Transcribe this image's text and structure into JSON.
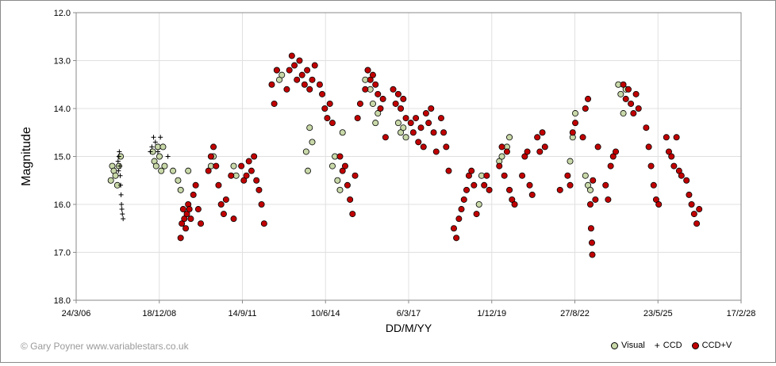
{
  "chart_data": {
    "type": "scatter",
    "title": "",
    "xlabel": "DD/M/YY",
    "ylabel": "Magnitude",
    "y_inverted": true,
    "ylim": [
      12.0,
      18.0
    ],
    "y_ticks": [
      "12.0",
      "13.0",
      "14.0",
      "15.0",
      "16.0",
      "17.0",
      "18.0"
    ],
    "xlim": [
      "2006-03-24",
      "2028-02-17"
    ],
    "x_ticks": [
      "24/3/06",
      "18/12/08",
      "14/9/11",
      "10/6/14",
      "6/3/17",
      "1/12/19",
      "27/8/22",
      "23/5/25",
      "17/2/28"
    ],
    "grid": true,
    "legend_position": "bottom-right",
    "colors": {
      "visual": "#c8d8a8",
      "ccd": "#000000",
      "ccdv": "#c00000",
      "grid": "#e0e0e0"
    },
    "series": [
      {
        "name": "Visual",
        "marker": "circle",
        "points": [
          [
            "2007-05-15",
            15.5
          ],
          [
            "2007-06-01",
            15.2
          ],
          [
            "2007-06-20",
            15.3
          ],
          [
            "2007-07-10",
            15.4
          ],
          [
            "2007-08-01",
            15.6
          ],
          [
            "2007-08-20",
            15.2
          ],
          [
            "2007-09-10",
            15.0
          ],
          [
            "2008-10-01",
            14.9
          ],
          [
            "2008-10-20",
            15.1
          ],
          [
            "2008-11-10",
            15.2
          ],
          [
            "2008-12-01",
            14.8
          ],
          [
            "2008-12-20",
            15.0
          ],
          [
            "2009-01-10",
            15.3
          ],
          [
            "2009-02-01",
            14.8
          ],
          [
            "2009-02-20",
            15.2
          ],
          [
            "2009-06-01",
            15.3
          ],
          [
            "2009-08-01",
            15.5
          ],
          [
            "2009-09-01",
            15.7
          ],
          [
            "2009-12-01",
            15.3
          ],
          [
            "2010-09-01",
            15.2
          ],
          [
            "2010-10-01",
            15.0
          ],
          [
            "2011-06-01",
            15.2
          ],
          [
            "2011-07-01",
            15.4
          ],
          [
            "2012-11-01",
            13.2
          ],
          [
            "2012-12-01",
            13.4
          ],
          [
            "2013-01-01",
            13.3
          ],
          [
            "2013-10-20",
            14.9
          ],
          [
            "2013-11-10",
            15.3
          ],
          [
            "2013-12-01",
            14.4
          ],
          [
            "2014-01-01",
            14.7
          ],
          [
            "2014-09-01",
            15.2
          ],
          [
            "2014-10-01",
            15.0
          ],
          [
            "2014-11-01",
            15.5
          ],
          [
            "2014-12-01",
            15.7
          ],
          [
            "2015-01-01",
            14.5
          ],
          [
            "2015-10-01",
            13.4
          ],
          [
            "2015-11-01",
            13.2
          ],
          [
            "2015-12-01",
            13.6
          ],
          [
            "2016-01-01",
            13.9
          ],
          [
            "2016-02-01",
            14.3
          ],
          [
            "2016-03-01",
            14.1
          ],
          [
            "2016-11-01",
            14.3
          ],
          [
            "2016-12-01",
            14.5
          ],
          [
            "2017-01-01",
            14.4
          ],
          [
            "2017-02-01",
            14.6
          ],
          [
            "2019-07-01",
            16.0
          ],
          [
            "2019-08-01",
            15.4
          ],
          [
            "2020-03-01",
            15.1
          ],
          [
            "2020-04-01",
            15.0
          ],
          [
            "2020-06-01",
            14.8
          ],
          [
            "2020-07-01",
            14.6
          ],
          [
            "2022-07-01",
            15.1
          ],
          [
            "2022-08-01",
            14.6
          ],
          [
            "2022-09-01",
            14.1
          ],
          [
            "2023-01-01",
            15.4
          ],
          [
            "2023-02-01",
            15.6
          ],
          [
            "2023-03-01",
            15.7
          ],
          [
            "2024-02-01",
            13.5
          ],
          [
            "2024-03-01",
            13.7
          ],
          [
            "2024-04-01",
            14.1
          ],
          [
            "2024-05-01",
            13.6
          ]
        ]
      },
      {
        "name": "CCD",
        "marker": "plus",
        "points": [
          [
            "2007-08-10",
            15.1
          ],
          [
            "2007-08-15",
            15.3
          ],
          [
            "2007-08-20",
            15.0
          ],
          [
            "2007-08-25",
            14.9
          ],
          [
            "2007-09-01",
            15.2
          ],
          [
            "2007-09-05",
            15.4
          ],
          [
            "2007-09-10",
            15.6
          ],
          [
            "2007-09-15",
            15.8
          ],
          [
            "2007-09-20",
            16.0
          ],
          [
            "2007-09-25",
            16.1
          ],
          [
            "2007-10-01",
            16.2
          ],
          [
            "2007-10-10",
            16.3
          ],
          [
            "2008-09-01",
            14.9
          ],
          [
            "2008-09-20",
            14.8
          ],
          [
            "2008-10-10",
            14.6
          ],
          [
            "2008-11-01",
            14.7
          ],
          [
            "2008-12-01",
            14.9
          ],
          [
            "2009-01-01",
            14.6
          ],
          [
            "2009-04-01",
            15.0
          ]
        ]
      },
      {
        "name": "CCD+V",
        "marker": "circle",
        "points": [
          [
            "2009-09-01",
            16.7
          ],
          [
            "2009-09-15",
            16.4
          ],
          [
            "2009-10-01",
            16.1
          ],
          [
            "2009-10-15",
            16.3
          ],
          [
            "2009-11-01",
            16.5
          ],
          [
            "2009-11-15",
            16.2
          ],
          [
            "2009-12-01",
            16.0
          ],
          [
            "2009-12-15",
            16.1
          ],
          [
            "2010-01-01",
            16.3
          ],
          [
            "2010-02-01",
            15.8
          ],
          [
            "2010-03-01",
            15.6
          ],
          [
            "2010-04-01",
            16.1
          ],
          [
            "2010-05-01",
            16.4
          ],
          [
            "2010-08-01",
            15.3
          ],
          [
            "2010-09-01",
            15.0
          ],
          [
            "2010-10-01",
            14.8
          ],
          [
            "2010-11-01",
            15.2
          ],
          [
            "2010-12-01",
            15.6
          ],
          [
            "2011-01-01",
            16.0
          ],
          [
            "2011-02-01",
            16.2
          ],
          [
            "2011-03-01",
            15.9
          ],
          [
            "2011-05-01",
            15.4
          ],
          [
            "2011-06-01",
            16.3
          ],
          [
            "2011-09-01",
            15.2
          ],
          [
            "2011-10-01",
            15.5
          ],
          [
            "2011-11-01",
            15.4
          ],
          [
            "2011-12-01",
            15.1
          ],
          [
            "2012-01-01",
            15.3
          ],
          [
            "2012-02-01",
            15.0
          ],
          [
            "2012-03-01",
            15.5
          ],
          [
            "2012-04-01",
            15.7
          ],
          [
            "2012-05-01",
            16.0
          ],
          [
            "2012-06-01",
            16.4
          ],
          [
            "2012-09-01",
            13.5
          ],
          [
            "2012-10-01",
            13.9
          ],
          [
            "2012-11-01",
            13.2
          ],
          [
            "2013-03-01",
            13.6
          ],
          [
            "2013-04-01",
            13.2
          ],
          [
            "2013-05-01",
            12.9
          ],
          [
            "2013-06-01",
            13.1
          ],
          [
            "2013-07-01",
            13.4
          ],
          [
            "2013-08-01",
            13.0
          ],
          [
            "2013-09-01",
            13.3
          ],
          [
            "2013-10-01",
            13.5
          ],
          [
            "2013-11-01",
            13.2
          ],
          [
            "2013-12-01",
            13.6
          ],
          [
            "2014-01-01",
            13.4
          ],
          [
            "2014-02-01",
            13.1
          ],
          [
            "2014-04-01",
            13.5
          ],
          [
            "2014-05-01",
            13.7
          ],
          [
            "2014-06-01",
            14.0
          ],
          [
            "2014-07-01",
            14.2
          ],
          [
            "2014-08-01",
            13.9
          ],
          [
            "2014-09-01",
            14.3
          ],
          [
            "2014-12-01",
            15.0
          ],
          [
            "2015-01-01",
            15.3
          ],
          [
            "2015-02-01",
            15.2
          ],
          [
            "2015-03-01",
            15.6
          ],
          [
            "2015-04-01",
            15.9
          ],
          [
            "2015-05-01",
            16.2
          ],
          [
            "2015-06-01",
            15.4
          ],
          [
            "2015-07-01",
            14.2
          ],
          [
            "2015-08-01",
            13.9
          ],
          [
            "2015-10-01",
            13.6
          ],
          [
            "2015-11-01",
            13.2
          ],
          [
            "2015-12-01",
            13.4
          ],
          [
            "2016-01-01",
            13.3
          ],
          [
            "2016-02-01",
            13.5
          ],
          [
            "2016-03-01",
            13.7
          ],
          [
            "2016-04-01",
            14.0
          ],
          [
            "2016-05-01",
            13.8
          ],
          [
            "2016-06-01",
            14.6
          ],
          [
            "2016-09-01",
            13.6
          ],
          [
            "2016-10-01",
            13.9
          ],
          [
            "2016-11-01",
            13.7
          ],
          [
            "2016-12-01",
            14.0
          ],
          [
            "2017-01-01",
            13.8
          ],
          [
            "2017-02-01",
            14.2
          ],
          [
            "2017-04-01",
            14.3
          ],
          [
            "2017-05-01",
            14.5
          ],
          [
            "2017-06-01",
            14.2
          ],
          [
            "2017-07-01",
            14.7
          ],
          [
            "2017-08-01",
            14.4
          ],
          [
            "2017-09-01",
            14.8
          ],
          [
            "2017-10-01",
            14.1
          ],
          [
            "2017-11-01",
            14.3
          ],
          [
            "2017-12-01",
            14.0
          ],
          [
            "2018-01-01",
            14.5
          ],
          [
            "2018-02-01",
            14.9
          ],
          [
            "2018-04-01",
            14.2
          ],
          [
            "2018-05-01",
            14.5
          ],
          [
            "2018-06-01",
            14.8
          ],
          [
            "2018-07-01",
            15.3
          ],
          [
            "2018-09-01",
            16.5
          ],
          [
            "2018-10-01",
            16.7
          ],
          [
            "2018-11-01",
            16.3
          ],
          [
            "2018-12-01",
            16.1
          ],
          [
            "2019-01-01",
            15.9
          ],
          [
            "2019-02-01",
            15.7
          ],
          [
            "2019-03-01",
            15.4
          ],
          [
            "2019-04-01",
            15.3
          ],
          [
            "2019-05-01",
            15.6
          ],
          [
            "2019-06-01",
            16.2
          ],
          [
            "2019-09-01",
            15.6
          ],
          [
            "2019-10-01",
            15.4
          ],
          [
            "2019-11-01",
            15.7
          ],
          [
            "2020-03-01",
            15.2
          ],
          [
            "2020-04-01",
            14.8
          ],
          [
            "2020-05-01",
            15.4
          ],
          [
            "2020-06-01",
            14.9
          ],
          [
            "2020-07-01",
            15.7
          ],
          [
            "2020-08-01",
            15.9
          ],
          [
            "2020-09-01",
            16.0
          ],
          [
            "2020-12-01",
            15.4
          ],
          [
            "2021-01-01",
            15.0
          ],
          [
            "2021-02-01",
            14.9
          ],
          [
            "2021-03-01",
            15.6
          ],
          [
            "2021-04-01",
            15.8
          ],
          [
            "2021-06-01",
            14.6
          ],
          [
            "2021-07-01",
            14.9
          ],
          [
            "2021-08-01",
            14.5
          ],
          [
            "2021-09-01",
            14.8
          ],
          [
            "2022-03-01",
            15.7
          ],
          [
            "2022-06-01",
            15.4
          ],
          [
            "2022-07-01",
            15.6
          ],
          [
            "2022-08-01",
            14.5
          ],
          [
            "2022-09-01",
            14.3
          ],
          [
            "2022-12-01",
            14.6
          ],
          [
            "2023-01-01",
            14.0
          ],
          [
            "2023-02-01",
            13.8
          ],
          [
            "2023-03-01",
            16.0
          ],
          [
            "2023-03-10",
            16.5
          ],
          [
            "2023-03-20",
            16.8
          ],
          [
            "2023-03-25",
            17.05
          ],
          [
            "2023-04-01",
            15.5
          ],
          [
            "2023-05-01",
            15.9
          ],
          [
            "2023-06-01",
            14.8
          ],
          [
            "2023-09-01",
            15.6
          ],
          [
            "2023-10-01",
            15.9
          ],
          [
            "2023-11-01",
            15.2
          ],
          [
            "2023-12-01",
            15.0
          ],
          [
            "2024-01-01",
            14.9
          ],
          [
            "2024-04-01",
            13.5
          ],
          [
            "2024-05-01",
            13.8
          ],
          [
            "2024-06-01",
            13.6
          ],
          [
            "2024-07-01",
            13.9
          ],
          [
            "2024-08-01",
            14.1
          ],
          [
            "2024-09-01",
            13.7
          ],
          [
            "2024-10-01",
            14.0
          ],
          [
            "2025-01-01",
            14.4
          ],
          [
            "2025-02-01",
            14.8
          ],
          [
            "2025-03-01",
            15.2
          ],
          [
            "2025-04-01",
            15.6
          ],
          [
            "2025-05-01",
            15.9
          ],
          [
            "2025-06-01",
            16.0
          ],
          [
            "2025-09-01",
            14.6
          ],
          [
            "2025-10-01",
            14.9
          ],
          [
            "2025-11-01",
            15.0
          ],
          [
            "2025-12-01",
            15.2
          ],
          [
            "2026-01-01",
            14.6
          ],
          [
            "2026-02-01",
            15.3
          ],
          [
            "2026-03-01",
            15.4
          ],
          [
            "2026-05-01",
            15.5
          ],
          [
            "2026-06-01",
            15.8
          ],
          [
            "2026-07-01",
            16.0
          ],
          [
            "2026-08-01",
            16.2
          ],
          [
            "2026-09-01",
            16.4
          ],
          [
            "2026-10-01",
            16.1
          ]
        ]
      }
    ]
  },
  "legend": {
    "visual_label": "Visual",
    "ccd_label": "CCD",
    "ccdv_label": "CCD+V"
  },
  "footer": {
    "copyright": "© Gary Poyner  www.variablestars.co.uk"
  }
}
